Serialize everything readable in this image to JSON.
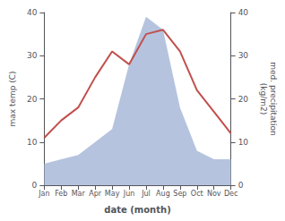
{
  "chart_data": {
    "type": "line",
    "xlabel": "date (month)",
    "ylabel": "max temp (C)",
    "y2label": "med. precipitation\n(kg/m2)",
    "categories": [
      "Jan",
      "Feb",
      "Mar",
      "Apr",
      "May",
      "Jun",
      "Jul",
      "Aug",
      "Sep",
      "Oct",
      "Nov",
      "Dec"
    ],
    "series": [
      {
        "type": "area",
        "color": "#a8b8d8",
        "axis": "y2",
        "values": [
          5,
          6,
          7,
          10,
          13,
          28,
          39,
          36,
          18,
          8,
          6,
          6
        ]
      },
      {
        "type": "line",
        "color": "#c0504d",
        "values": [
          11,
          15,
          18,
          25,
          31,
          28,
          35,
          36,
          31,
          22,
          17,
          12
        ]
      }
    ],
    "ylim": [
      0,
      40
    ],
    "yticks": [
      0,
      10,
      20,
      30,
      40
    ],
    "y2lim": [
      0,
      40
    ],
    "y2ticks": [
      0,
      10,
      20,
      30,
      40
    ],
    "grid": false
  }
}
